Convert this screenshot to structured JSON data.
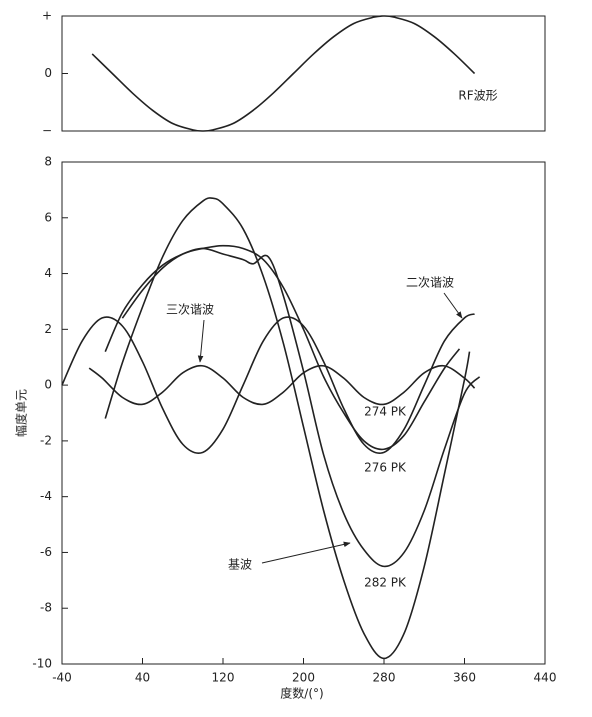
{
  "chart_data": [
    {
      "type": "line",
      "annotation": "RF波形",
      "ylim": [
        -1,
        1
      ],
      "yticks": [
        {
          "value": 1,
          "label": "+"
        },
        0,
        {
          "value": -1,
          "label": "−"
        }
      ],
      "xlim": [
        -40,
        440
      ],
      "series": [
        {
          "color": "#222222",
          "x": [
            -10,
            10,
            30,
            50,
            70,
            90,
            100,
            110,
            130,
            150,
            170,
            190,
            210,
            230,
            250,
            270,
            280,
            290,
            310,
            330,
            350,
            370
          ],
          "values": [
            0.34,
            0,
            -0.34,
            -0.64,
            -0.87,
            -0.98,
            -1,
            -0.98,
            -0.87,
            -0.64,
            -0.34,
            0,
            0.34,
            0.64,
            0.87,
            0.98,
            1,
            0.98,
            0.87,
            0.64,
            0.34,
            0
          ]
        }
      ]
    },
    {
      "type": "line",
      "xlabel": "度数/(°)",
      "ylabel": "幅度单元",
      "xlim": [
        -40,
        440
      ],
      "xticks": [
        -40,
        40,
        120,
        200,
        280,
        360,
        440
      ],
      "ylim": [
        -10,
        8
      ],
      "yticks": [
        -10,
        -8,
        -6,
        -4,
        -2,
        0,
        2,
        4,
        6,
        8
      ],
      "annotations": [
        "三次谐波",
        "二次谐波",
        "基波",
        "274 PK",
        "276 PK",
        "282 PK"
      ],
      "series": [
        {
          "color": "#222222",
          "x": [
            -13,
            0,
            20,
            40,
            60,
            80,
            100,
            120,
            140,
            160,
            180,
            200,
            220,
            240,
            260,
            280,
            300,
            320,
            340,
            360,
            370
          ],
          "values": [
            0.61,
            0.25,
            -0.44,
            -0.69,
            -0.25,
            0.44,
            0.69,
            0.25,
            -0.44,
            -0.69,
            -0.25,
            0.44,
            0.69,
            0.25,
            -0.44,
            -0.69,
            -0.25,
            0.44,
            0.69,
            0.25,
            -0.11
          ]
        },
        {
          "color": "#222222",
          "x": [
            -40,
            -20,
            0,
            20,
            40,
            60,
            80,
            100,
            120,
            140,
            160,
            180,
            200,
            220,
            240,
            260,
            280,
            300,
            320,
            340,
            360,
            370
          ],
          "values": [
            0,
            1.58,
            2.41,
            2.12,
            0.84,
            -0.84,
            -2.12,
            -2.41,
            -1.58,
            0,
            1.58,
            2.41,
            2.12,
            0.84,
            -0.84,
            -2.12,
            -2.41,
            -1.58,
            0,
            1.58,
            2.41,
            2.55
          ]
        },
        {
          "color": "#222222",
          "x": [
            20,
            40,
            60,
            80,
            100,
            120,
            140,
            160,
            180,
            200,
            220,
            240,
            260,
            280,
            300,
            320,
            340,
            355
          ],
          "values": [
            2.4,
            3.4,
            4.2,
            4.7,
            4.9,
            5.0,
            4.9,
            4.5,
            3.5,
            2.0,
            0.3,
            -1.0,
            -2.0,
            -2.3,
            -1.8,
            -0.6,
            0.6,
            1.3
          ]
        },
        {
          "color": "#222222",
          "x": [
            3,
            20,
            40,
            60,
            80,
            100,
            120,
            140,
            150,
            165,
            180,
            200,
            220,
            240,
            260,
            280,
            300,
            320,
            340,
            360,
            375
          ],
          "values": [
            1.2,
            2.6,
            3.6,
            4.3,
            4.7,
            4.9,
            4.7,
            4.5,
            4.35,
            4.6,
            3.2,
            0.5,
            -2.5,
            -4.6,
            -5.9,
            -6.5,
            -6.0,
            -4.5,
            -2.3,
            -0.3,
            0.3
          ]
        },
        {
          "color": "#222222",
          "x": [
            3,
            20,
            40,
            60,
            80,
            100,
            110,
            120,
            140,
            160,
            180,
            200,
            220,
            240,
            260,
            280,
            300,
            320,
            340,
            360,
            365
          ],
          "values": [
            -1.2,
            0.8,
            2.8,
            4.6,
            5.9,
            6.6,
            6.7,
            6.5,
            5.6,
            3.9,
            1.5,
            -1.5,
            -4.5,
            -7.0,
            -8.9,
            -9.8,
            -8.9,
            -6.5,
            -3.2,
            0.2,
            1.2
          ]
        }
      ]
    }
  ]
}
